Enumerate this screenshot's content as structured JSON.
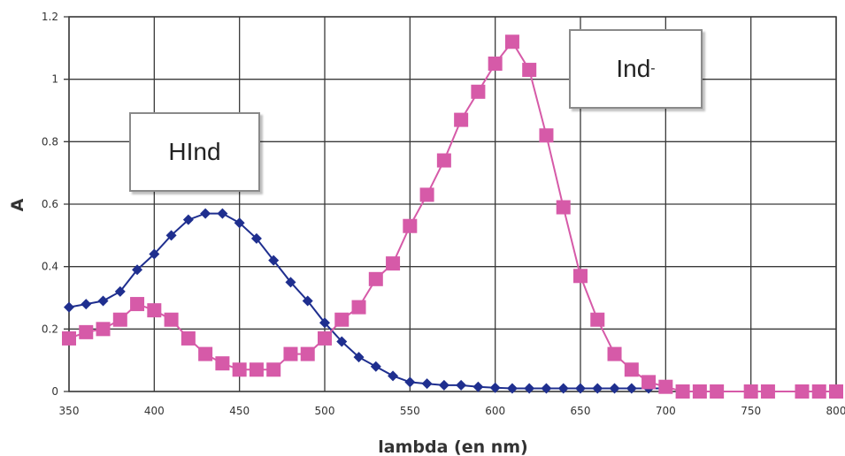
{
  "chart_data": {
    "type": "line",
    "xlabel": "lambda (en nm)",
    "ylabel": "A",
    "xlim": [
      350,
      800
    ],
    "ylim": [
      0,
      1.2
    ],
    "x_ticks": [
      "350",
      "400",
      "450",
      "500",
      "550",
      "600",
      "650",
      "700",
      "750",
      "800"
    ],
    "y_ticks": [
      "0",
      "0.2",
      "0.4",
      "0.6",
      "0.8",
      "1",
      "1.2"
    ],
    "grid": true,
    "annotations": [
      {
        "text": "HInd",
        "series": "HInd"
      },
      {
        "text": "Ind",
        "superscript": "-",
        "series": "Ind-"
      }
    ],
    "series": [
      {
        "name": "HInd",
        "color": "#1f2f8f",
        "marker": "diamond",
        "x": [
          350,
          360,
          370,
          380,
          390,
          400,
          410,
          420,
          430,
          440,
          450,
          460,
          470,
          480,
          490,
          500,
          510,
          520,
          530,
          540,
          550,
          560,
          570,
          580,
          590,
          600,
          610,
          620,
          630,
          640,
          650,
          660,
          670,
          680,
          690,
          700
        ],
        "y": [
          0.27,
          0.28,
          0.29,
          0.32,
          0.39,
          0.44,
          0.5,
          0.55,
          0.57,
          0.57,
          0.54,
          0.49,
          0.42,
          0.35,
          0.29,
          0.22,
          0.16,
          0.11,
          0.08,
          0.05,
          0.03,
          0.025,
          0.02,
          0.02,
          0.015,
          0.012,
          0.01,
          0.01,
          0.01,
          0.01,
          0.01,
          0.01,
          0.01,
          0.01,
          0.01,
          0.01
        ]
      },
      {
        "name": "Ind-",
        "color": "#d65aa8",
        "marker": "square",
        "x": [
          350,
          360,
          370,
          380,
          390,
          400,
          410,
          420,
          430,
          440,
          450,
          460,
          470,
          480,
          490,
          500,
          510,
          520,
          530,
          540,
          550,
          560,
          570,
          580,
          590,
          600,
          610,
          620,
          630,
          640,
          650,
          660,
          670,
          680,
          690,
          700,
          710,
          720,
          730,
          750,
          760,
          780,
          790,
          800
        ],
        "y": [
          0.17,
          0.19,
          0.2,
          0.23,
          0.28,
          0.26,
          0.23,
          0.17,
          0.12,
          0.09,
          0.07,
          0.07,
          0.07,
          0.12,
          0.12,
          0.17,
          0.23,
          0.27,
          0.36,
          0.41,
          0.53,
          0.63,
          0.74,
          0.87,
          0.96,
          1.05,
          1.12,
          1.03,
          0.82,
          0.59,
          0.37,
          0.23,
          0.12,
          0.07,
          0.03,
          0.015,
          0.0,
          0.0,
          0.0,
          0.0,
          0.0,
          0.0,
          0.0,
          0.0
        ]
      }
    ]
  }
}
